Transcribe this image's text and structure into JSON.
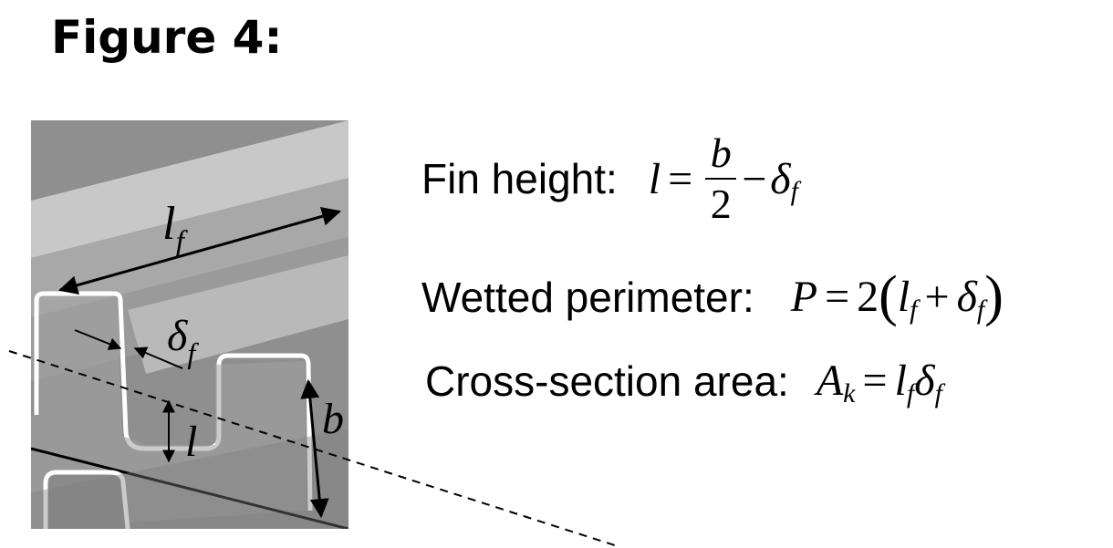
{
  "title": "Figure 4:",
  "diagram_labels": {
    "lf_main": "l",
    "lf_sub": "f",
    "delta": "δ",
    "delta_sub": "f",
    "l": "l",
    "b": "b"
  },
  "equations": [
    {
      "label": "Fin height:",
      "lhs": "l",
      "eq": "=",
      "frac_num": "b",
      "frac_den": "2",
      "minus": "−",
      "term": "δ",
      "term_sub": "f"
    },
    {
      "label": "Wetted perimeter:",
      "lhs": "P",
      "eq": "=",
      "coef": "2",
      "open": "(",
      "a": "l",
      "a_sub": "f",
      "plus": "+",
      "b": "δ",
      "b_sub": "f",
      "close": ")"
    },
    {
      "label": "Cross-section area:",
      "lhs": "A",
      "lhs_sub": "k",
      "eq": "=",
      "a": "l",
      "a_sub": "f",
      "b": "δ",
      "b_sub": "f"
    }
  ]
}
